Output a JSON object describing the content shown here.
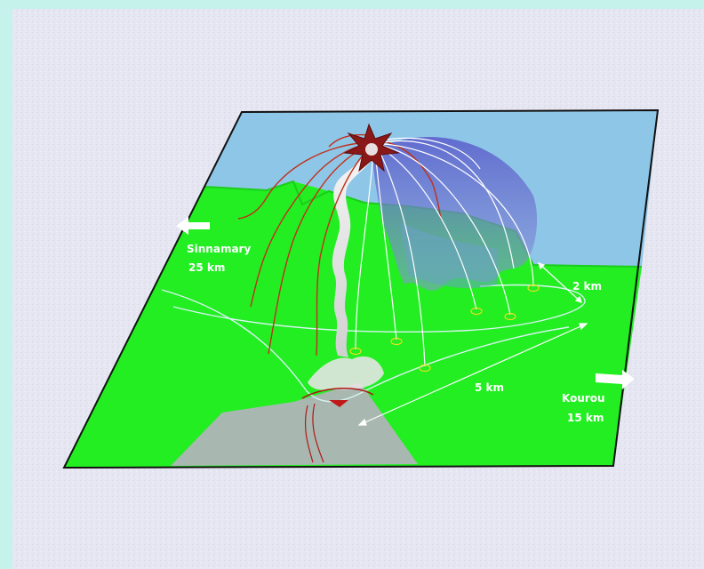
{
  "labels": {
    "sinnamary_name": "Sinnamary",
    "sinnamary_dist": "25 km",
    "kourou_name": "Kourou",
    "kourou_dist": "15 km",
    "dist_2km": "2 km",
    "dist_5km": "5 km"
  },
  "colors": {
    "page_background": "#c6f2ec",
    "panel_background": "#e6e6f2",
    "sea": "#8ec6e8",
    "land": "#22ee22",
    "launch_pad_area": "#a8b8b0",
    "trajectory_red": "#c0301a",
    "trajectory_white": "#ffffff",
    "debris_cloud": "#6a6ad0",
    "smoke": "#e8e8e8",
    "explosion": "#8a1818",
    "boundary_line": "#d8f4f0",
    "impact_marker": "#e8e020"
  },
  "icons": {
    "left_arrow": "arrow-left-icon",
    "right_arrow": "arrow-right-icon",
    "explosion": "explosion-icon"
  }
}
